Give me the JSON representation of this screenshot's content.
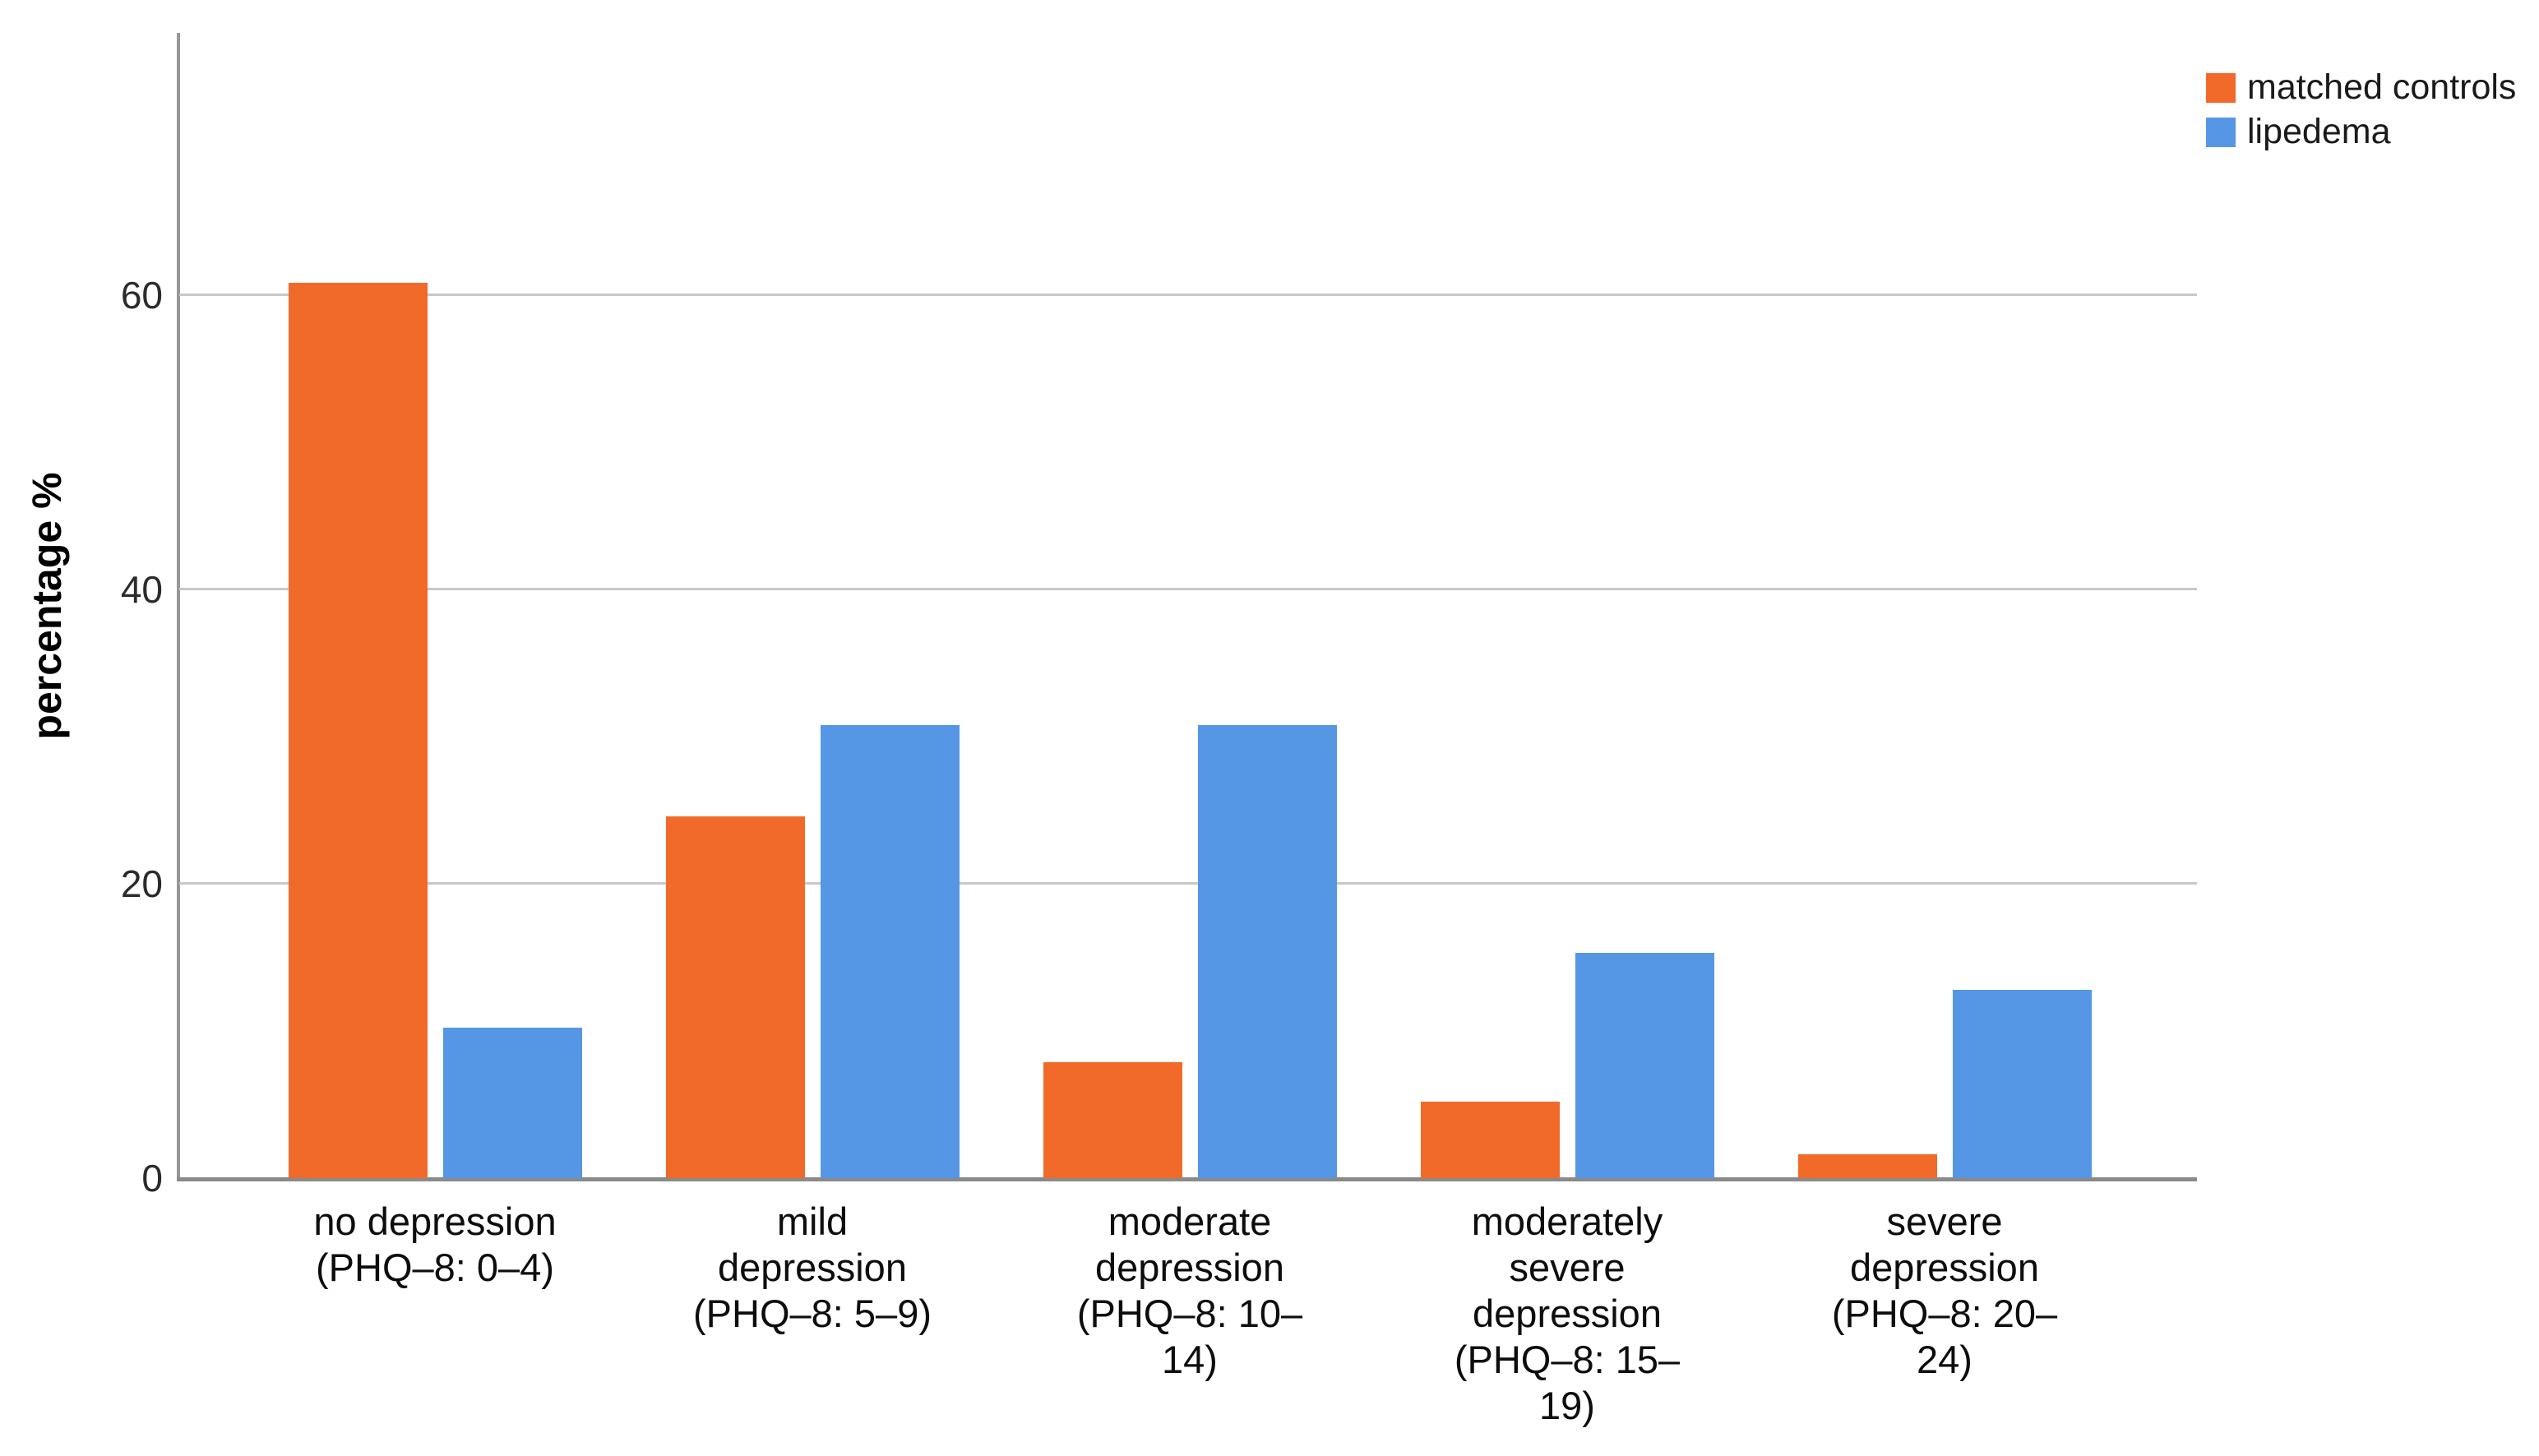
{
  "chart_data": {
    "type": "bar",
    "title": "",
    "xlabel": "",
    "ylabel": "percentage %",
    "ylim": [
      0,
      77.8
    ],
    "yticks": [
      0,
      20,
      40,
      60
    ],
    "grid": "horizontal gridlines at 20, 40, 60",
    "legend_position": "top-right",
    "axis_color": "#979797",
    "gridline_color": "#c8c8c8",
    "categories": [
      "no depression (PHQ–8: 0–4)",
      "mild depression (PHQ–8: 5–9)",
      "moderate depression (PHQ–8: 10–14)",
      "moderately severe depression (PHQ–8: 15–19)",
      "severe depression (PHQ–8: 20–24)"
    ],
    "category_lines": [
      [
        "no depression",
        "(PHQ–8: 0–4)"
      ],
      [
        "mild",
        "depression",
        "(PHQ–8: 5–9)"
      ],
      [
        "moderate",
        "depression",
        "(PHQ–8: 10–",
        "14)"
      ],
      [
        "moderately",
        "severe",
        "depression",
        "(PHQ–8: 15–",
        "19)"
      ],
      [
        "severe",
        "depression",
        "(PHQ–8: 20–",
        "24)"
      ]
    ],
    "series": [
      {
        "name": "matched controls",
        "color": "#F26A2A",
        "values": [
          60.8,
          24.6,
          7.9,
          5.2,
          1.6
        ]
      },
      {
        "name": "lipedema",
        "color": "#5596E5",
        "values": [
          10.2,
          30.8,
          30.8,
          15.3,
          12.8
        ]
      }
    ]
  }
}
